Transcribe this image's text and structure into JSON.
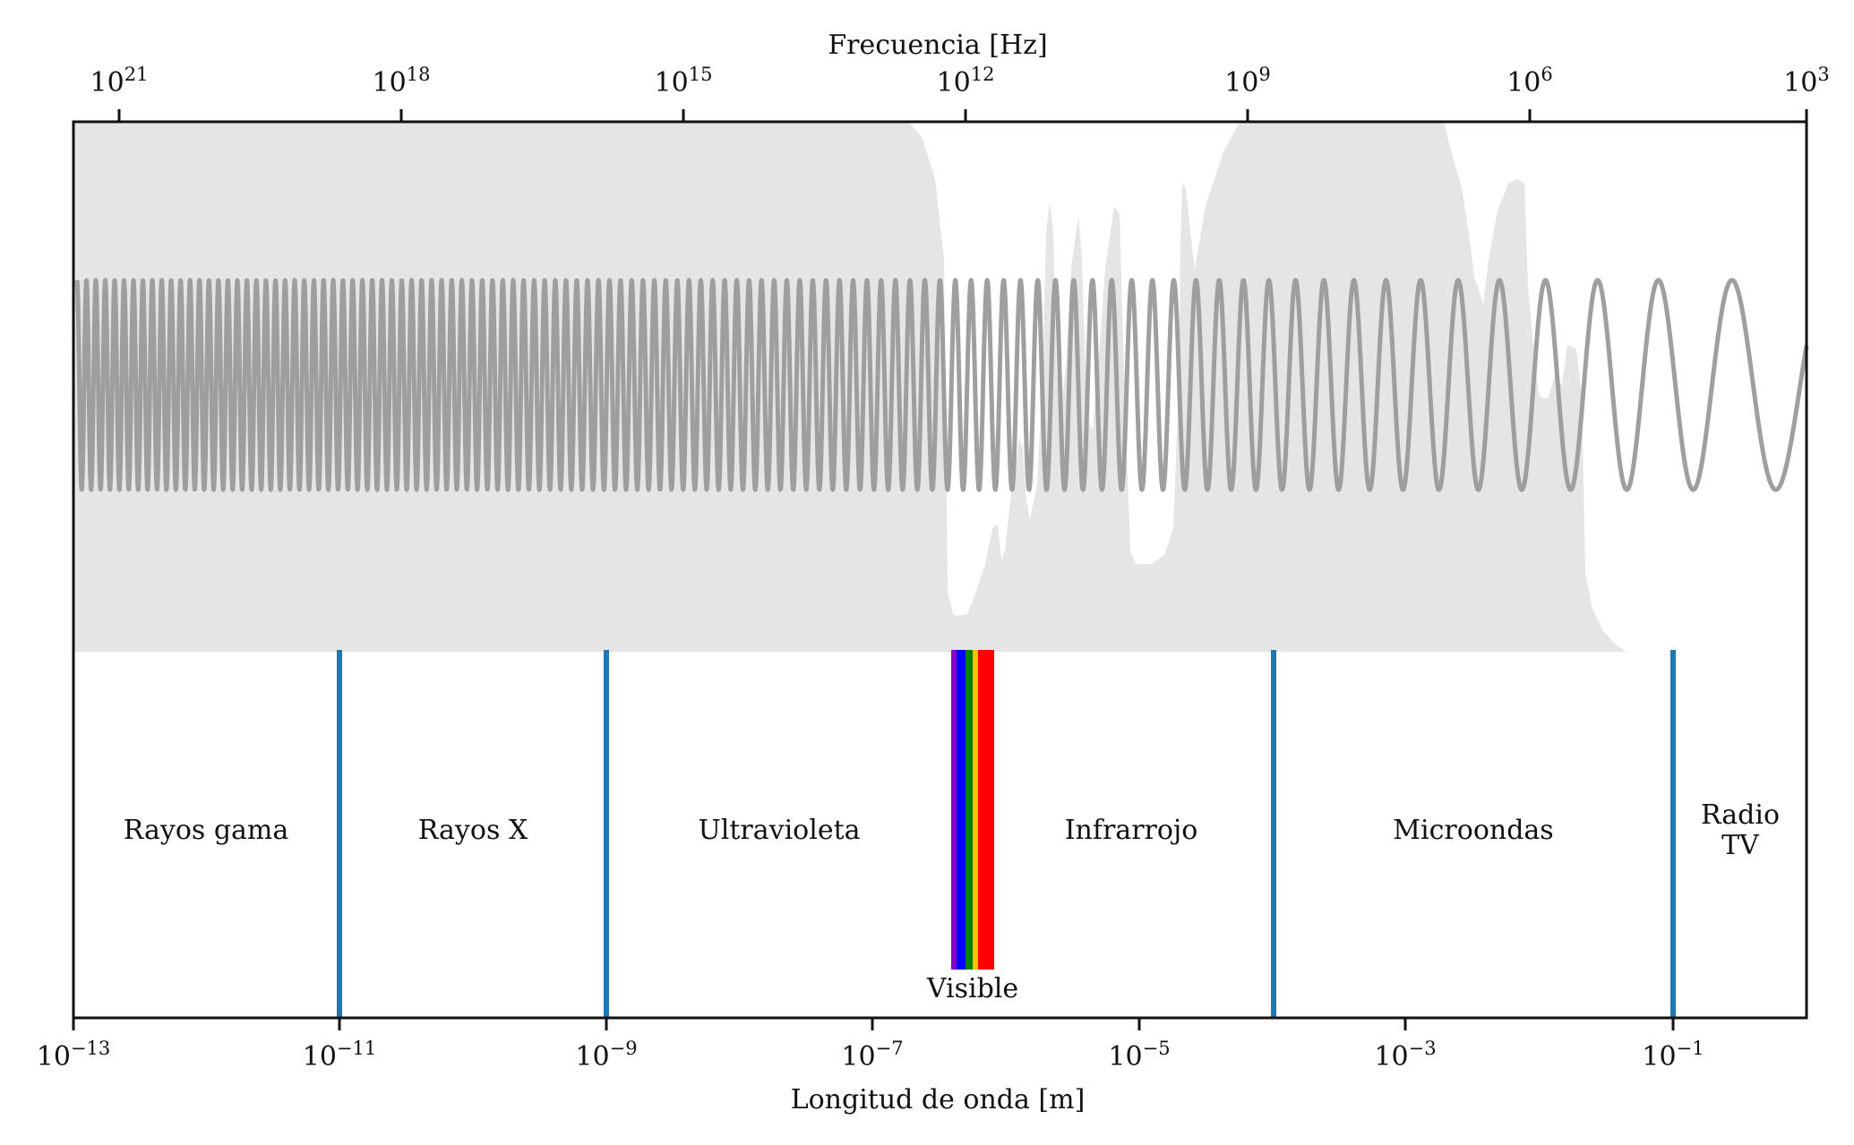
{
  "figure": {
    "top_axis_title": "Frecuencia [Hz]",
    "bottom_axis_title": "Longitud de onda [m]",
    "top_ticks": [
      {
        "base": "10",
        "exp": "21"
      },
      {
        "base": "10",
        "exp": "18"
      },
      {
        "base": "10",
        "exp": "15"
      },
      {
        "base": "10",
        "exp": "12"
      },
      {
        "base": "10",
        "exp": "9"
      },
      {
        "base": "10",
        "exp": "6"
      },
      {
        "base": "10",
        "exp": "3"
      }
    ],
    "bottom_ticks": [
      {
        "base": "10",
        "exp": "−13"
      },
      {
        "base": "10",
        "exp": "−11"
      },
      {
        "base": "10",
        "exp": "−9"
      },
      {
        "base": "10",
        "exp": "−7"
      },
      {
        "base": "10",
        "exp": "−5"
      },
      {
        "base": "10",
        "exp": "−3"
      },
      {
        "base": "10",
        "exp": "−1"
      }
    ],
    "bands": [
      {
        "label_lines": [
          "Rayos gama"
        ]
      },
      {
        "label_lines": [
          "Rayos X"
        ]
      },
      {
        "label_lines": [
          "Ultravioleta"
        ]
      },
      {
        "label_lines": [
          "Infrarrojo"
        ]
      },
      {
        "label_lines": [
          "Microondas"
        ]
      },
      {
        "label_lines": [
          "Radio",
          "TV"
        ]
      }
    ],
    "visible_label": "Visible",
    "colors": {
      "opacity_fill": "#e5e5e5",
      "wave": "#9a9a9a",
      "divider": "#1f77b4",
      "axes": "#111111",
      "visible_bands": [
        "#8a00c8",
        "#0000ff",
        "#008000",
        "#ffbf00",
        "#ff0000"
      ]
    }
  }
}
